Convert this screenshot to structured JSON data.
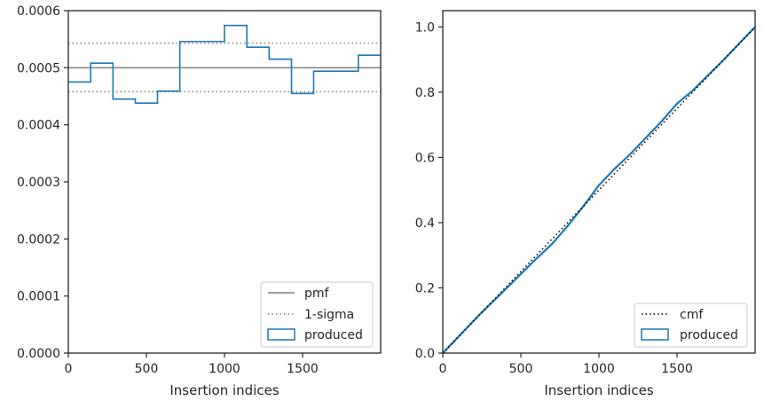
{
  "chart_data": [
    {
      "type": "line",
      "xlabel": "Insertion indices",
      "ylabel": "",
      "xlim": [
        0,
        2000
      ],
      "ylim": [
        0,
        0.0006
      ],
      "xticks": [
        "0",
        "500",
        "1000",
        "1500"
      ],
      "yticks": [
        "0.0000",
        "0.0001",
        "0.0002",
        "0.0003",
        "0.0004",
        "0.0005",
        "0.0006"
      ],
      "grid": false,
      "legend_position": "bottom-right",
      "pmf": 0.0005,
      "sigma_upper": 0.000543,
      "sigma_lower": 0.000458,
      "hist_edges": [
        0,
        143,
        286,
        429,
        571,
        714,
        1000,
        1143,
        1286,
        1429,
        1571,
        1857,
        2000
      ],
      "hist_values": [
        0.000475,
        0.000508,
        0.000445,
        0.000438,
        0.000459,
        0.000546,
        0.000574,
        0.000536,
        0.000515,
        0.000455,
        0.000494,
        0.000522
      ],
      "legend": [
        {
          "label": "pmf",
          "style": "solid",
          "color": "#808080"
        },
        {
          "label": "1-sigma",
          "style": "dotted",
          "color": "#808080"
        },
        {
          "label": "produced",
          "style": "patch",
          "color": "#1f77b4"
        }
      ]
    },
    {
      "type": "line",
      "xlabel": "Insertion indices",
      "ylabel": "",
      "xlim": [
        0,
        2000
      ],
      "ylim": [
        0,
        1.05
      ],
      "xticks": [
        "0",
        "500",
        "1000",
        "1500"
      ],
      "yticks": [
        "0.0",
        "0.2",
        "0.4",
        "0.6",
        "0.8",
        "1.0"
      ],
      "grid": false,
      "legend_position": "bottom-right",
      "cmf": {
        "x": [
          0,
          2000
        ],
        "y": [
          0,
          1.0
        ]
      },
      "produced": {
        "x": [
          0,
          250,
          400,
          600,
          700,
          800,
          900,
          1000,
          1100,
          1200,
          1400,
          1500,
          1600,
          1800,
          2000
        ],
        "y": [
          0,
          0.125,
          0.195,
          0.29,
          0.335,
          0.39,
          0.45,
          0.515,
          0.565,
          0.61,
          0.71,
          0.765,
          0.805,
          0.9,
          1.0
        ]
      },
      "legend": [
        {
          "label": "cmf",
          "style": "dotted",
          "color": "#000000"
        },
        {
          "label": "produced",
          "style": "patch",
          "color": "#1f77b4"
        }
      ]
    }
  ]
}
